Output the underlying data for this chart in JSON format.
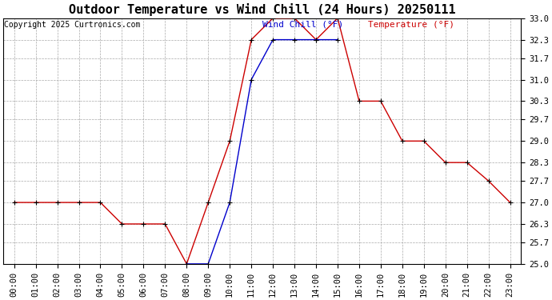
{
  "title": "Outdoor Temperature vs Wind Chill (24 Hours) 20250111",
  "copyright": "Copyright 2025 Curtronics.com",
  "legend_wind_chill": "Wind Chill (°F)",
  "legend_temperature": "Temperature (°F)",
  "hours": [
    "00:00",
    "01:00",
    "02:00",
    "03:00",
    "04:00",
    "05:00",
    "06:00",
    "07:00",
    "08:00",
    "09:00",
    "10:00",
    "11:00",
    "12:00",
    "13:00",
    "14:00",
    "15:00",
    "16:00",
    "17:00",
    "18:00",
    "19:00",
    "20:00",
    "21:00",
    "22:00",
    "23:00"
  ],
  "temperature": [
    27.0,
    27.0,
    27.0,
    27.0,
    27.0,
    26.3,
    26.3,
    26.3,
    25.0,
    27.0,
    29.0,
    32.3,
    33.0,
    33.0,
    32.3,
    33.0,
    30.3,
    30.3,
    29.0,
    29.0,
    28.3,
    28.3,
    27.7,
    27.0
  ],
  "wind_chill": [
    null,
    null,
    null,
    null,
    null,
    null,
    null,
    null,
    25.0,
    25.0,
    27.0,
    31.0,
    32.3,
    32.3,
    32.3,
    32.3,
    null,
    null,
    null,
    null,
    null,
    null,
    null,
    null
  ],
  "ylim": [
    25.0,
    33.0
  ],
  "yticks": [
    25.0,
    25.7,
    26.3,
    27.0,
    27.7,
    28.3,
    29.0,
    29.7,
    30.3,
    31.0,
    31.7,
    32.3,
    33.0
  ],
  "temp_color": "#cc0000",
  "wind_color": "#0000cc",
  "bg_color": "#ffffff",
  "grid_color": "#aaaaaa",
  "title_fontsize": 11,
  "copyright_fontsize": 7,
  "legend_fontsize": 8,
  "tick_fontsize": 7.5
}
